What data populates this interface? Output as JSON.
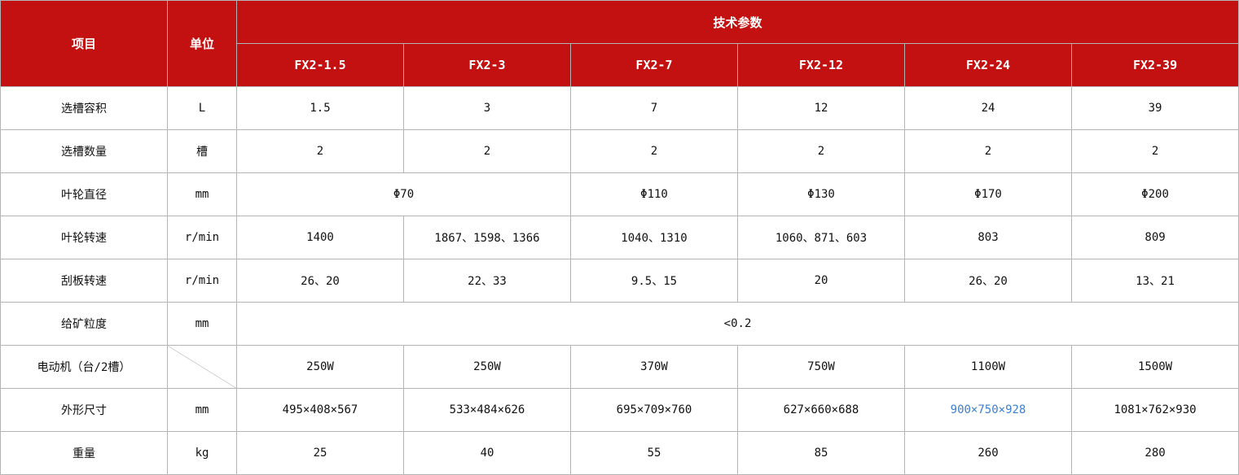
{
  "header": {
    "item_label": "项目",
    "unit_label": "单位",
    "params_label": "技术参数",
    "models": [
      "FX2-1.5",
      "FX2-3",
      "FX2-7",
      "FX2-12",
      "FX2-24",
      "FX2-39"
    ]
  },
  "highlight_color": "#3b7fd1",
  "header_color": "#c31010",
  "rows": [
    {
      "item": "选槽容积",
      "unit": "L",
      "cells": [
        {
          "text": "1.5",
          "span": 1
        },
        {
          "text": "3",
          "span": 1
        },
        {
          "text": "7",
          "span": 1
        },
        {
          "text": "12",
          "span": 1
        },
        {
          "text": "24",
          "span": 1
        },
        {
          "text": "39",
          "span": 1
        }
      ]
    },
    {
      "item": "选槽数量",
      "unit": "槽",
      "cells": [
        {
          "text": "2",
          "span": 1
        },
        {
          "text": "2",
          "span": 1
        },
        {
          "text": "2",
          "span": 1
        },
        {
          "text": "2",
          "span": 1
        },
        {
          "text": "2",
          "span": 1
        },
        {
          "text": "2",
          "span": 1
        }
      ]
    },
    {
      "item": "叶轮直径",
      "unit": "mm",
      "cells": [
        {
          "text": "Φ70",
          "span": 2
        },
        {
          "text": "Φ110",
          "span": 1
        },
        {
          "text": "Φ130",
          "span": 1
        },
        {
          "text": "Φ170",
          "span": 1
        },
        {
          "text": "Φ200",
          "span": 1
        }
      ]
    },
    {
      "item": "叶轮转速",
      "unit": "r/min",
      "cells": [
        {
          "text": "1400",
          "span": 1
        },
        {
          "text": "1867、1598、1366",
          "span": 1
        },
        {
          "text": "1040、1310",
          "span": 1
        },
        {
          "text": "1060、871、603",
          "span": 1
        },
        {
          "text": "803",
          "span": 1
        },
        {
          "text": "809",
          "span": 1
        }
      ]
    },
    {
      "item": "刮板转速",
      "unit": "r/min",
      "cells": [
        {
          "text": "26、20",
          "span": 1
        },
        {
          "text": "22、33",
          "span": 1
        },
        {
          "text": "9.5、15",
          "span": 1
        },
        {
          "text": "20",
          "span": 1
        },
        {
          "text": "26、20",
          "span": 1
        },
        {
          "text": "13、21",
          "span": 1
        }
      ]
    },
    {
      "item": "给矿粒度",
      "unit": "mm",
      "cells": [
        {
          "text": "<0.2",
          "span": 6
        }
      ]
    },
    {
      "item": "电动机（台/2槽）",
      "unit": null,
      "cells": [
        {
          "text": "250W",
          "span": 1
        },
        {
          "text": "250W",
          "span": 1
        },
        {
          "text": "370W",
          "span": 1
        },
        {
          "text": "750W",
          "span": 1
        },
        {
          "text": "1100W",
          "span": 1
        },
        {
          "text": "1500W",
          "span": 1
        }
      ]
    },
    {
      "item": "外形尺寸",
      "unit": "mm",
      "cells": [
        {
          "text": "495×408×567",
          "span": 1
        },
        {
          "text": "533×484×626",
          "span": 1
        },
        {
          "text": "695×709×760",
          "span": 1
        },
        {
          "text": "627×660×688",
          "span": 1
        },
        {
          "text": "900×750×928",
          "span": 1,
          "highlight": true
        },
        {
          "text": "1081×762×930",
          "span": 1
        }
      ]
    },
    {
      "item": "重量",
      "unit": "kg",
      "cells": [
        {
          "text": "25",
          "span": 1
        },
        {
          "text": "40",
          "span": 1
        },
        {
          "text": "55",
          "span": 1
        },
        {
          "text": "85",
          "span": 1
        },
        {
          "text": "260",
          "span": 1
        },
        {
          "text": "280",
          "span": 1
        }
      ]
    }
  ]
}
